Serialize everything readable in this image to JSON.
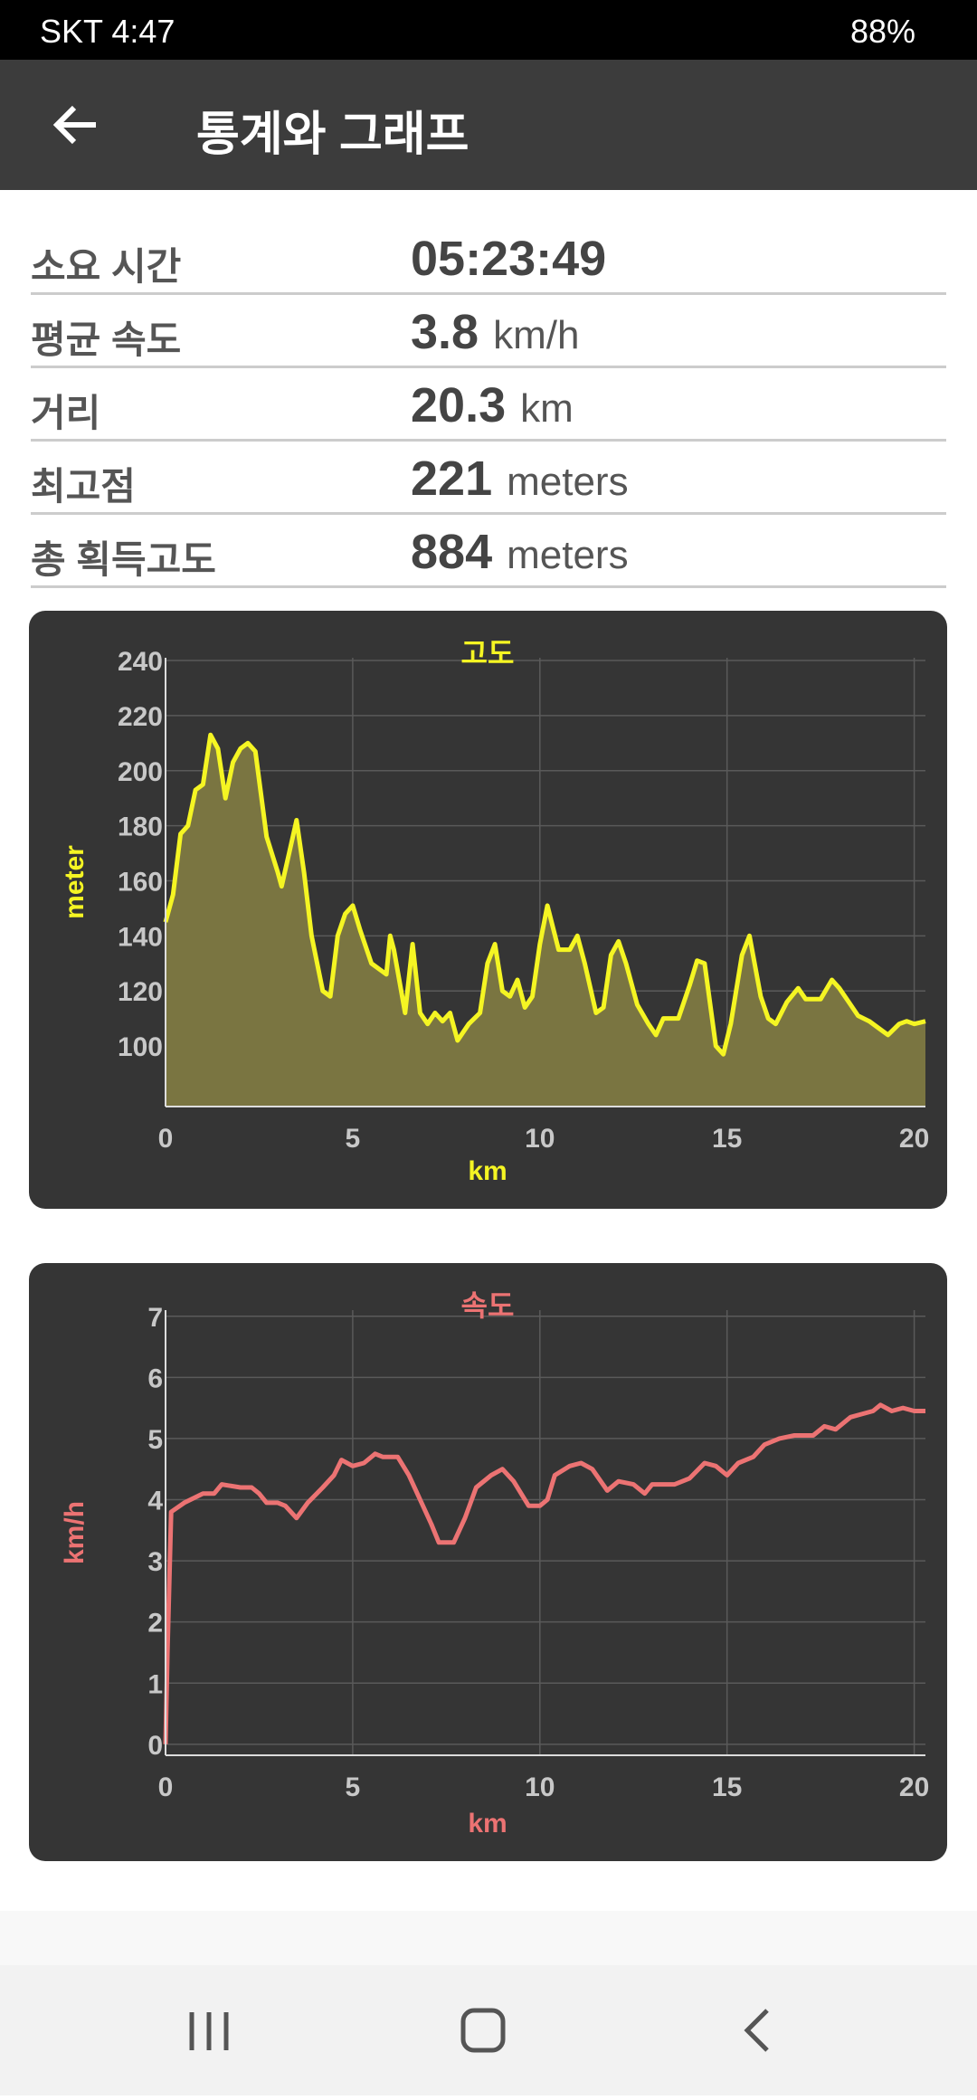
{
  "status_bar": {
    "carrier_time": "SKT 4:47",
    "battery": "88%"
  },
  "header": {
    "title": "통계와 그래프"
  },
  "stats": [
    {
      "label": "소요 시간",
      "value": "05:23:49",
      "unit": ""
    },
    {
      "label": "평균 속도",
      "value": "3.8",
      "unit": "km/h"
    },
    {
      "label": "거리",
      "value": "20.3",
      "unit": "km"
    },
    {
      "label": "최고점",
      "value": "221",
      "unit": "meters"
    },
    {
      "label": "총 획득고도",
      "value": "884",
      "unit": "meters"
    }
  ],
  "chart_data": [
    {
      "type": "area",
      "title": "고도",
      "x_label": "km",
      "y_label": "meter",
      "color": "#f5f523",
      "fill": "#7a7541",
      "grid": true,
      "xlim": [
        0,
        20.3
      ],
      "xticks": [
        0,
        5,
        10,
        15,
        20
      ],
      "ylim": [
        78,
        241
      ],
      "yticks": [
        100,
        120,
        140,
        160,
        180,
        200,
        220,
        240
      ],
      "x": [
        0,
        0.2,
        0.4,
        0.6,
        0.8,
        1.0,
        1.2,
        1.4,
        1.6,
        1.8,
        2.0,
        2.2,
        2.4,
        2.7,
        3.0,
        3.1,
        3.3,
        3.5,
        3.7,
        3.9,
        4.2,
        4.4,
        4.6,
        4.8,
        5.0,
        5.2,
        5.5,
        5.8,
        5.9,
        6.0,
        6.1,
        6.4,
        6.6,
        6.8,
        7.0,
        7.2,
        7.4,
        7.6,
        7.8,
        8.1,
        8.4,
        8.6,
        8.8,
        9.0,
        9.2,
        9.4,
        9.6,
        9.8,
        10.0,
        10.2,
        10.5,
        10.8,
        11.0,
        11.2,
        11.5,
        11.7,
        11.9,
        12.1,
        12.3,
        12.6,
        12.9,
        13.1,
        13.3,
        13.7,
        14.0,
        14.2,
        14.4,
        14.7,
        14.9,
        15.1,
        15.4,
        15.6,
        15.9,
        16.1,
        16.3,
        16.6,
        16.9,
        17.1,
        17.5,
        17.8,
        18.0,
        18.3,
        18.5,
        18.8,
        19.0,
        19.3,
        19.6,
        19.8,
        20.0,
        20.3
      ],
      "values": [
        145,
        155,
        177,
        180,
        193,
        195,
        213,
        208,
        190,
        203,
        208,
        210,
        207,
        176,
        163,
        158,
        170,
        182,
        163,
        140,
        120,
        118,
        140,
        148,
        151,
        142,
        130,
        127,
        126,
        140,
        135,
        112,
        137,
        112,
        108,
        112,
        109,
        112,
        102,
        108,
        112,
        130,
        137,
        120,
        118,
        124,
        114,
        118,
        137,
        151,
        135,
        135,
        140,
        130,
        112,
        114,
        133,
        138,
        130,
        115,
        108,
        104,
        110,
        110,
        122,
        131,
        130,
        100,
        97,
        108,
        133,
        140,
        118,
        110,
        108,
        116,
        121,
        117,
        117,
        124,
        121,
        115,
        111,
        109,
        107,
        104,
        108,
        109,
        108,
        109
      ]
    },
    {
      "type": "line",
      "title": "속도",
      "x_label": "km",
      "y_label": "km/h",
      "color": "#ec7373",
      "grid": true,
      "xlim": [
        0,
        20.3
      ],
      "xticks": [
        0,
        5,
        10,
        15,
        20
      ],
      "ylim": [
        -0.18,
        7.1
      ],
      "yticks": [
        0,
        1,
        2,
        3,
        4,
        5,
        6,
        7
      ],
      "x": [
        0,
        0.05,
        0.15,
        0.5,
        1.0,
        1.3,
        1.5,
        2.0,
        2.3,
        2.5,
        2.7,
        3.0,
        3.2,
        3.5,
        3.8,
        4.2,
        4.5,
        4.7,
        5.0,
        5.3,
        5.6,
        5.8,
        6.2,
        6.5,
        6.8,
        7.1,
        7.3,
        7.7,
        8.0,
        8.3,
        8.7,
        9.0,
        9.3,
        9.7,
        10.0,
        10.2,
        10.4,
        10.8,
        11.1,
        11.4,
        11.8,
        12.1,
        12.5,
        12.8,
        13.0,
        13.6,
        14.0,
        14.4,
        14.7,
        15.0,
        15.3,
        15.7,
        16.0,
        16.4,
        16.8,
        17.3,
        17.6,
        17.9,
        18.3,
        18.6,
        18.9,
        19.1,
        19.4,
        19.7,
        20.0,
        20.3
      ],
      "values": [
        0,
        1.5,
        3.8,
        3.95,
        4.1,
        4.1,
        4.25,
        4.2,
        4.2,
        4.1,
        3.95,
        3.95,
        3.9,
        3.7,
        3.95,
        4.2,
        4.4,
        4.65,
        4.55,
        4.6,
        4.75,
        4.7,
        4.7,
        4.4,
        4.0,
        3.6,
        3.3,
        3.3,
        3.7,
        4.2,
        4.4,
        4.5,
        4.3,
        3.9,
        3.9,
        4.0,
        4.4,
        4.55,
        4.6,
        4.5,
        4.15,
        4.3,
        4.25,
        4.1,
        4.25,
        4.25,
        4.35,
        4.6,
        4.55,
        4.4,
        4.6,
        4.7,
        4.9,
        5.0,
        5.05,
        5.05,
        5.2,
        5.15,
        5.35,
        5.4,
        5.45,
        5.55,
        5.45,
        5.5,
        5.45,
        5.45
      ]
    }
  ]
}
